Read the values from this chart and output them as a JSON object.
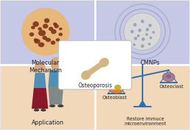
{
  "bg_color": "#e8e8e8",
  "top_left_bg": "#c5c9e5",
  "top_right_bg": "#c5c9e5",
  "bot_left_bg": "#f0d8b8",
  "bot_right_bg": "#f0d8b8",
  "title_top_left": "Molecular\nMechanism",
  "title_top_right": "CMNPs",
  "title_bot_left": "Application",
  "title_bot_mid": "Osteoblast",
  "title_bot_right": "Osteoclast",
  "title_bot_bottom": "Restore immuce\nmicroenvironment",
  "center_label": "Osteoporosis",
  "bone_color": "#d4b483",
  "text_color": "#222222",
  "scale_color": "#2a6fbb",
  "font_size": 6,
  "porous_sphere_color": "#e8b87a",
  "pore_color": "#7a3018",
  "cmnp_sphere_color": "#d8d8d8",
  "cmnp_ring_color": "#7a8aaa",
  "cmnp_dot_color": "#7a8aaa",
  "ob_cell_color": "#e07828",
  "ob_nuc_color": "#c8a010",
  "oc_cell_color": "#a07898",
  "oc_nuc_color": "#806080",
  "man_shirt": "#5090b8",
  "man_pants": "#808888",
  "woman_shirt": "#5090b8",
  "woman_skirt": "#8a1828",
  "skin_color": "#d8a880"
}
